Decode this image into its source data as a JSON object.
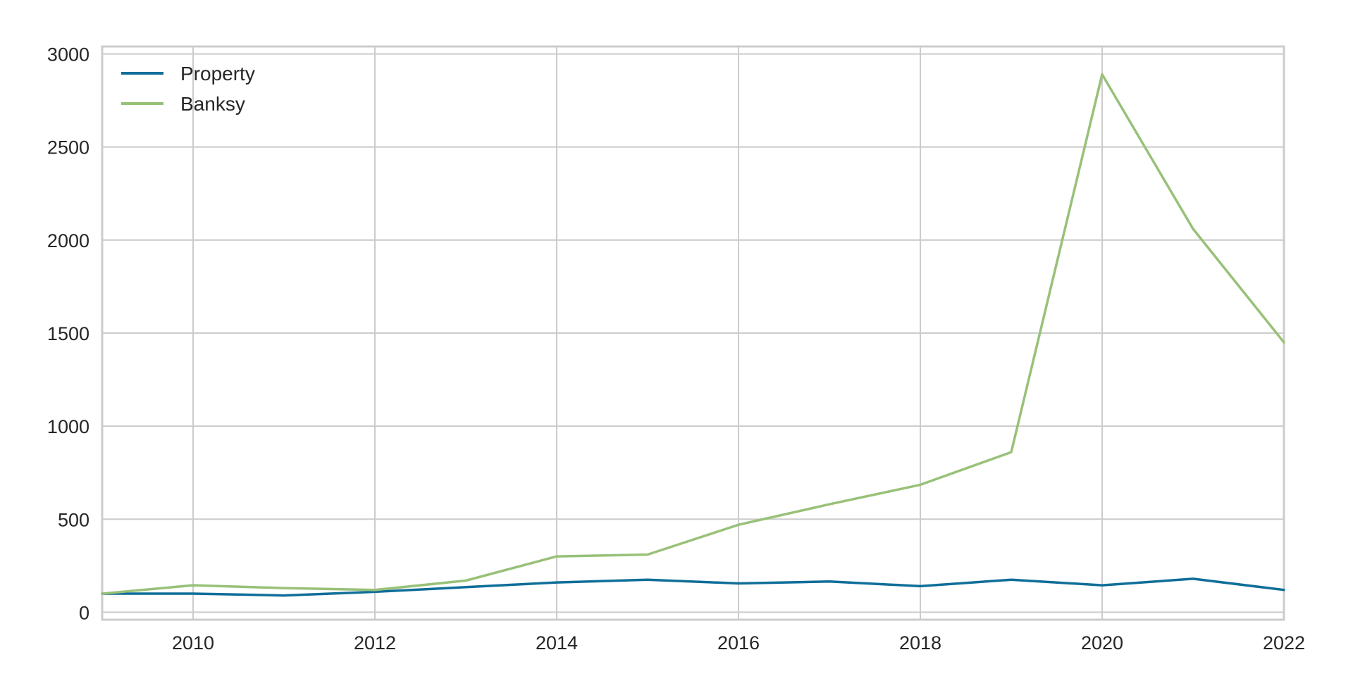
{
  "chart_data": {
    "type": "line",
    "title": "",
    "xlabel": "",
    "ylabel": "",
    "xlim": [
      2009,
      2022
    ],
    "ylim": [
      -40,
      3040
    ],
    "x_ticks": [
      2010,
      2012,
      2014,
      2016,
      2018,
      2020,
      2022
    ],
    "y_ticks": [
      0,
      500,
      1000,
      1500,
      2000,
      2500,
      3000
    ],
    "x_tick_labels": [
      "2010",
      "2012",
      "2014",
      "2016",
      "2018",
      "2020",
      "2022"
    ],
    "y_tick_labels": [
      "0",
      "500",
      "1000",
      "1500",
      "2000",
      "2500",
      "3000"
    ],
    "grid": true,
    "legend_position": "top-left",
    "x": [
      2009,
      2010,
      2011,
      2012,
      2013,
      2014,
      2015,
      2016,
      2017,
      2018,
      2019,
      2020,
      2021,
      2022
    ],
    "series": [
      {
        "name": "Property",
        "color": "#0f6e99",
        "values": [
          100,
          100,
          90,
          110,
          135,
          160,
          175,
          155,
          165,
          140,
          175,
          145,
          180,
          120
        ]
      },
      {
        "name": "Banksy",
        "color": "#98c178",
        "values": [
          100,
          145,
          130,
          120,
          170,
          300,
          310,
          470,
          580,
          685,
          860,
          2890,
          2060,
          1450
        ]
      }
    ]
  }
}
